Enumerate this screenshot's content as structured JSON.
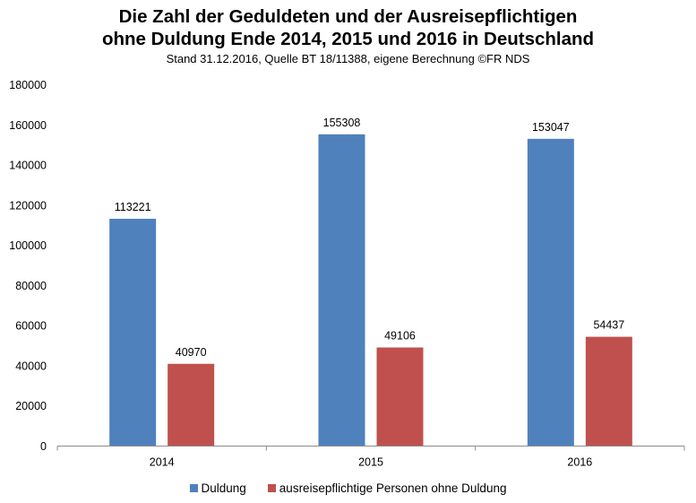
{
  "chart_data": {
    "type": "bar",
    "title_line1": "Die Zahl der Geduldeten und der Ausreisepflichtigen",
    "title_line2": "ohne Duldung Ende 2014, 2015 und 2016 in Deutschland",
    "subtitle": "Stand 31.12.2016, Quelle BT 18/11388, eigene Berechnung ©FR NDS",
    "categories": [
      "2014",
      "2015",
      "2016"
    ],
    "series": [
      {
        "name": "Duldung",
        "color": "#4f81bd",
        "values": [
          113221,
          155308,
          153047
        ]
      },
      {
        "name": "ausreisepflichtige Personen ohne Duldung",
        "color": "#c0504d",
        "values": [
          40970,
          49106,
          54437
        ]
      }
    ],
    "ylim": [
      0,
      180000
    ],
    "yticks": [
      0,
      20000,
      40000,
      60000,
      80000,
      100000,
      120000,
      140000,
      160000,
      180000
    ],
    "grid": false,
    "legend": "bottom"
  }
}
